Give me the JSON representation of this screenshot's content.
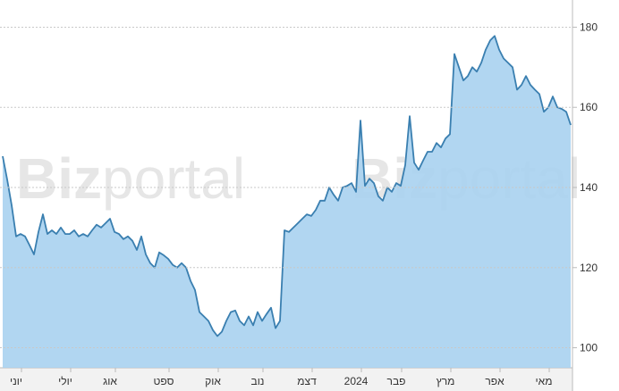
{
  "chart_data": {
    "type": "area",
    "watermark": {
      "bold": "Biz",
      "light": "portal"
    },
    "categories": [
      null,
      null,
      null,
      "יוני",
      null,
      null,
      null,
      null,
      null,
      null,
      null,
      null,
      null,
      null,
      "יולי",
      null,
      null,
      null,
      null,
      null,
      null,
      null,
      null,
      null,
      "אוג",
      null,
      null,
      null,
      null,
      null,
      null,
      null,
      null,
      null,
      null,
      null,
      "ספט",
      null,
      null,
      null,
      null,
      null,
      null,
      null,
      null,
      null,
      null,
      "אוק",
      null,
      null,
      null,
      null,
      null,
      null,
      null,
      null,
      null,
      "נוב",
      null,
      null,
      null,
      null,
      null,
      null,
      null,
      null,
      null,
      null,
      "דצמ",
      null,
      null,
      null,
      null,
      null,
      null,
      null,
      null,
      null,
      null,
      "2024",
      null,
      null,
      null,
      null,
      null,
      null,
      null,
      null,
      "פבר",
      null,
      null,
      null,
      null,
      null,
      null,
      null,
      null,
      null,
      null,
      "מרץ",
      null,
      null,
      null,
      null,
      null,
      null,
      null,
      null,
      null,
      null,
      "אפר",
      null,
      null,
      null,
      null,
      null,
      null,
      null,
      null,
      null,
      null,
      "מאי",
      null,
      null,
      null,
      null,
      null,
      null
    ],
    "values": [
      147.8,
      142,
      135.6,
      127.8,
      128.4,
      127.8,
      125.6,
      123.3,
      128.9,
      133.3,
      128.4,
      129.3,
      128.4,
      130,
      128.4,
      128.4,
      129.3,
      127.8,
      128.4,
      127.8,
      129.3,
      130.7,
      130,
      131.1,
      132.2,
      128.9,
      128.4,
      127.1,
      127.8,
      126.7,
      124.4,
      127.8,
      123.3,
      121.1,
      120,
      123.8,
      123.1,
      122.2,
      120.7,
      120,
      121.1,
      120,
      116.7,
      114.4,
      108.9,
      107.8,
      106.7,
      104.4,
      102.9,
      104,
      106.7,
      108.9,
      109.3,
      106.7,
      105.6,
      107.8,
      105.6,
      108.9,
      106.7,
      108.4,
      110,
      104.9,
      106.7,
      129.3,
      128.9,
      130,
      131.1,
      132.2,
      133.3,
      132.9,
      134.4,
      136.7,
      136.7,
      140,
      138.2,
      136.7,
      140,
      140.4,
      141.1,
      138.9,
      156.7,
      140.4,
      142.2,
      141.1,
      137.8,
      136.7,
      140,
      138.9,
      141.1,
      140.4,
      145.6,
      157.8,
      146.2,
      144.4,
      146.7,
      148.9,
      148.9,
      151.1,
      150,
      152.2,
      153.3,
      173.3,
      170,
      166.7,
      167.8,
      170,
      168.9,
      171.1,
      174.4,
      176.7,
      177.8,
      174.4,
      172.2,
      171.1,
      170,
      164.4,
      165.6,
      167.8,
      165.6,
      164.4,
      163.3,
      158.9,
      160,
      162.7,
      160,
      159.6,
      158.9,
      155.6
    ],
    "color": "#3a7fb0",
    "fill": "#a8d2f0",
    "ylim": [
      95,
      185
    ],
    "yticks": [
      100,
      120,
      140,
      160,
      180
    ],
    "grid": true
  }
}
